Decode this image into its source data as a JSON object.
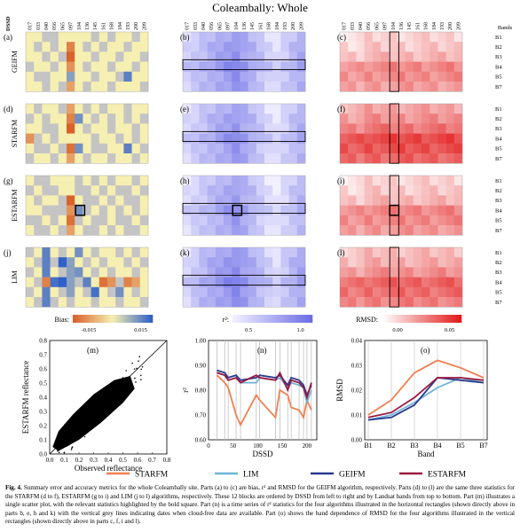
{
  "title": "Coleambally: Whole",
  "dssd_label": "DSSD",
  "bands_label": "Bands",
  "dssd_ticks": [
    "017",
    "033",
    "040",
    "056",
    "065",
    "097",
    "104",
    "136",
    "145",
    "161",
    "168",
    "184",
    "193",
    "200",
    "209"
  ],
  "bands": [
    "B1",
    "B2",
    "B3",
    "B4",
    "B5",
    "B7"
  ],
  "row_labels": [
    "GEIFM",
    "STARFM",
    "ESTARFM",
    "LIM"
  ],
  "panel_letters": [
    "(a)",
    "(b)",
    "(c)",
    "(d)",
    "(e)",
    "(f)",
    "(g)",
    "(h)",
    "(i)",
    "(j)",
    "(k)",
    "(l)"
  ],
  "colorbars": {
    "bias": {
      "label": "Bias:",
      "ticks": [
        "-0.015",
        "0.015"
      ]
    },
    "r2": {
      "label": "r²:",
      "ticks": [
        "0.5",
        "1.0"
      ]
    },
    "rmsd": {
      "label": "RMSD:",
      "ticks": [
        "0.00",
        "0.05"
      ]
    }
  },
  "colors": {
    "bias_neg": "#d9622b",
    "bias_zero": "#f6efb2",
    "bias_pos": "#3060c8",
    "bias_nodata": "#c4c4c4",
    "r2_low": "#f2f0ff",
    "r2_high": "#6d6ee6",
    "rmsd_low": "#ffffff",
    "rmsd_high": "#e21a1a"
  },
  "heatmaps": {
    "bias": {
      "GEIFM": [
        [
          "y",
          "y",
          "n",
          "n",
          "y",
          "y",
          "y",
          "y",
          "n",
          "y",
          "n",
          "y",
          "y",
          "n",
          "y"
        ],
        [
          "y",
          "n",
          "y",
          "n",
          "y",
          "o",
          "y",
          "n",
          "y",
          "n",
          "y",
          "y",
          "n",
          "y",
          "y"
        ],
        [
          "y",
          "y",
          "n",
          "y",
          "n",
          "o",
          "y",
          "y",
          "n",
          "y",
          "y",
          "n",
          "y",
          "y",
          "n"
        ],
        [
          "n",
          "y",
          "y",
          "n",
          "y",
          "o",
          "y",
          "n",
          "y",
          "y",
          "n",
          "y",
          "y",
          "n",
          "y"
        ],
        [
          "y",
          "n",
          "n",
          "y",
          "y",
          "b",
          "y",
          "y",
          "n",
          "y",
          "y",
          "n",
          "b",
          "y",
          "y"
        ],
        [
          "y",
          "y",
          "n",
          "y",
          "n",
          "o",
          "y",
          "n",
          "y",
          "y",
          "n",
          "y",
          "y",
          "y",
          "n"
        ]
      ],
      "STARFM": [
        [
          "y",
          "n",
          "y",
          "y",
          "n",
          "o",
          "y",
          "n",
          "y",
          "n",
          "y",
          "y",
          "n",
          "y",
          "y"
        ],
        [
          "n",
          "y",
          "n",
          "y",
          "y",
          "o",
          "b",
          "y",
          "n",
          "y",
          "n",
          "y",
          "n",
          "y",
          "n"
        ],
        [
          "y",
          "y",
          "n",
          "n",
          "y",
          "o",
          "y",
          "n",
          "y",
          "y",
          "n",
          "y",
          "y",
          "n",
          "y"
        ],
        [
          "o",
          "n",
          "y",
          "n",
          "y",
          "y",
          "y",
          "y",
          "n",
          "y",
          "y",
          "n",
          "y",
          "n",
          "y"
        ],
        [
          "y",
          "n",
          "n",
          "y",
          "n",
          "o",
          "b",
          "y",
          "n",
          "n",
          "y",
          "y",
          "b",
          "y",
          "n"
        ],
        [
          "n",
          "y",
          "y",
          "n",
          "y",
          "o",
          "y",
          "n",
          "y",
          "y",
          "n",
          "y",
          "y",
          "n",
          "y"
        ]
      ],
      "ESTARFM": [
        [
          "y",
          "n",
          "n",
          "y",
          "y",
          "y",
          "n",
          "y",
          "n",
          "y",
          "n",
          "y",
          "y",
          "n",
          "y"
        ],
        [
          "n",
          "y",
          "n",
          "n",
          "y",
          "y",
          "n",
          "n",
          "y",
          "n",
          "y",
          "n",
          "n",
          "y",
          "n"
        ],
        [
          "y",
          "n",
          "y",
          "y",
          "n",
          "o",
          "y",
          "n",
          "n",
          "y",
          "n",
          "y",
          "n",
          "n",
          "y"
        ],
        [
          "y",
          "y",
          "n",
          "n",
          "n",
          "o",
          "b",
          "n",
          "y",
          "n",
          "y",
          "n",
          "y",
          "n",
          "y"
        ],
        [
          "n",
          "n",
          "y",
          "n",
          "y",
          "o",
          "n",
          "y",
          "n",
          "n",
          "y",
          "n",
          "n",
          "y",
          "n"
        ],
        [
          "y",
          "n",
          "n",
          "y",
          "n",
          "o",
          "y",
          "n",
          "n",
          "y",
          "n",
          "y",
          "n",
          "n",
          "y"
        ]
      ],
      "LIM": [
        [
          "n",
          "y",
          "b",
          "y",
          "n",
          "y",
          "b",
          "y",
          "n",
          "y",
          "y",
          "n",
          "y",
          "n",
          "y"
        ],
        [
          "y",
          "n",
          "b",
          "n",
          "b",
          "b",
          "y",
          "n",
          "y",
          "n",
          "y",
          "y",
          "n",
          "y",
          "n"
        ],
        [
          "n",
          "y",
          "b",
          "y",
          "n",
          "b",
          "b",
          "y",
          "n",
          "y",
          "n",
          "y",
          "y",
          "n",
          "y"
        ],
        [
          "y",
          "n",
          "o",
          "b",
          "b",
          "b",
          "n",
          "b",
          "y",
          "o",
          "o",
          "n",
          "o",
          "o",
          "y"
        ],
        [
          "n",
          "y",
          "b",
          "y",
          "n",
          "b",
          "y",
          "n",
          "b",
          "y",
          "n",
          "b",
          "y",
          "n",
          "y"
        ],
        [
          "y",
          "n",
          "b",
          "n",
          "y",
          "n",
          "y",
          "y",
          "n",
          "y",
          "y",
          "n",
          "y",
          "y",
          "n"
        ]
      ]
    },
    "r2_row_means": {
      "GEIFM": [
        0.62,
        0.66,
        0.7,
        0.74,
        0.78,
        0.82,
        0.86,
        0.8,
        0.74,
        0.68,
        0.62,
        0.58,
        0.64,
        0.7,
        0.76
      ],
      "STARFM": [
        0.6,
        0.64,
        0.68,
        0.72,
        0.76,
        0.8,
        0.84,
        0.78,
        0.72,
        0.66,
        0.6,
        0.56,
        0.62,
        0.68,
        0.74
      ],
      "ESTARFM": [
        0.58,
        0.62,
        0.66,
        0.7,
        0.74,
        0.78,
        0.82,
        0.76,
        0.7,
        0.64,
        0.58,
        0.54,
        0.6,
        0.66,
        0.72
      ],
      "LIM": [
        0.6,
        0.66,
        0.72,
        0.76,
        0.8,
        0.84,
        0.88,
        0.82,
        0.76,
        0.7,
        0.64,
        0.58,
        0.66,
        0.72,
        0.78
      ]
    },
    "rmsd_band_means": {
      "GEIFM": [
        0.01,
        0.012,
        0.016,
        0.026,
        0.025,
        0.022
      ],
      "STARFM": [
        0.02,
        0.024,
        0.03,
        0.04,
        0.038,
        0.034
      ],
      "ESTARFM": [
        0.01,
        0.012,
        0.016,
        0.027,
        0.026,
        0.023
      ],
      "LIM": [
        0.015,
        0.018,
        0.024,
        0.034,
        0.032,
        0.028
      ]
    }
  },
  "scatter": {
    "letter": "(m)",
    "xlabel": "Observed reflectance",
    "ylabel": "ESTARFM reflectance",
    "ticks": [
      "0.0",
      "0.1",
      "0.2",
      "0.3",
      "0.4",
      "0.5",
      "0.6",
      "0.7",
      "0.8"
    ]
  },
  "chart_data": [
    {
      "type": "line",
      "title": "(n)",
      "xlabel": "DSSD",
      "ylabel": "r²",
      "xlim": [
        0,
        220
      ],
      "ylim": [
        0.6,
        1.0
      ],
      "xticks": [
        "0",
        "50",
        "100",
        "150",
        "200"
      ],
      "yticks": [
        "0.60",
        "0.70",
        "0.80",
        "0.90",
        "1.00"
      ],
      "x": [
        17,
        33,
        40,
        56,
        65,
        97,
        104,
        136,
        145,
        161,
        168,
        184,
        193,
        200,
        209
      ],
      "vlines": [
        17,
        33,
        40,
        56,
        65,
        97,
        104,
        136,
        145,
        161,
        168,
        184,
        193,
        200,
        209
      ],
      "series": [
        {
          "name": "STARFM",
          "color": "#f08050",
          "values": [
            0.86,
            0.83,
            0.81,
            0.7,
            0.66,
            0.78,
            0.76,
            0.69,
            0.8,
            0.78,
            0.73,
            0.72,
            0.69,
            0.76,
            0.72
          ]
        },
        {
          "name": "LIM",
          "color": "#6fb4d8",
          "values": [
            0.87,
            0.86,
            0.85,
            0.86,
            0.83,
            0.83,
            0.85,
            0.84,
            0.85,
            0.81,
            0.83,
            0.82,
            0.81,
            0.75,
            0.8
          ]
        },
        {
          "name": "GEIFM",
          "color": "#283a8c",
          "values": [
            0.88,
            0.87,
            0.85,
            0.86,
            0.84,
            0.85,
            0.86,
            0.85,
            0.86,
            0.82,
            0.85,
            0.84,
            0.82,
            0.78,
            0.82
          ]
        },
        {
          "name": "ESTARFM",
          "color": "#9a1840",
          "values": [
            0.87,
            0.86,
            0.84,
            0.85,
            0.83,
            0.86,
            0.85,
            0.84,
            0.87,
            0.8,
            0.84,
            0.83,
            0.81,
            0.77,
            0.83
          ]
        }
      ]
    },
    {
      "type": "line",
      "title": "(o)",
      "xlabel": "Band",
      "ylabel": "RMSD",
      "categories": [
        "B1",
        "B2",
        "B3",
        "B4",
        "B5",
        "B7"
      ],
      "ylim": [
        0,
        0.04
      ],
      "yticks": [
        "0.00",
        "0.01",
        "0.02",
        "0.03",
        "0.04"
      ],
      "series": [
        {
          "name": "STARFM",
          "color": "#f08050",
          "values": [
            0.01,
            0.016,
            0.027,
            0.032,
            0.029,
            0.025
          ]
        },
        {
          "name": "LIM",
          "color": "#6fb4d8",
          "values": [
            0.008,
            0.01,
            0.015,
            0.021,
            0.025,
            0.023
          ]
        },
        {
          "name": "GEIFM",
          "color": "#283a8c",
          "values": [
            0.008,
            0.009,
            0.014,
            0.025,
            0.024,
            0.023
          ]
        },
        {
          "name": "ESTARFM",
          "color": "#9a1840",
          "values": [
            0.009,
            0.011,
            0.017,
            0.025,
            0.025,
            0.024
          ]
        }
      ]
    }
  ],
  "legend": [
    "STARFM",
    "LIM",
    "GEIFM",
    "ESTARFM"
  ],
  "caption": {
    "figno": "Fig. 4.",
    "text": "Summary error and accuracy metrics for the whole Coleambally site. Parts (a) to (c) are bias, r² and RMSD for the GEIFM algorithm, respectively. Parts (d) to (l) are the same three statistics for the STARFM (d to f), ESTARFM (g to i) and LIM (j to l) algorithms, respectively. These 12 blocks are ordered by DSSD from left to right and by Landsat bands from top to bottom. Part (m) illustrates a single scatter plot, with the relevant statistics highlighted by the bold square. Part (n) is a time series of r² statistics for the four algorithms illustrated in the horizontal rectangles (shown directly above in parts b, e, h and k) with the vertical grey lines indicating dates when cloud-free data are available. Part (o) shows the band dependence of RMSD for the four algorithms illustrated in the vertical rectangles (shown directly above in parts c, f, i and l)."
  }
}
